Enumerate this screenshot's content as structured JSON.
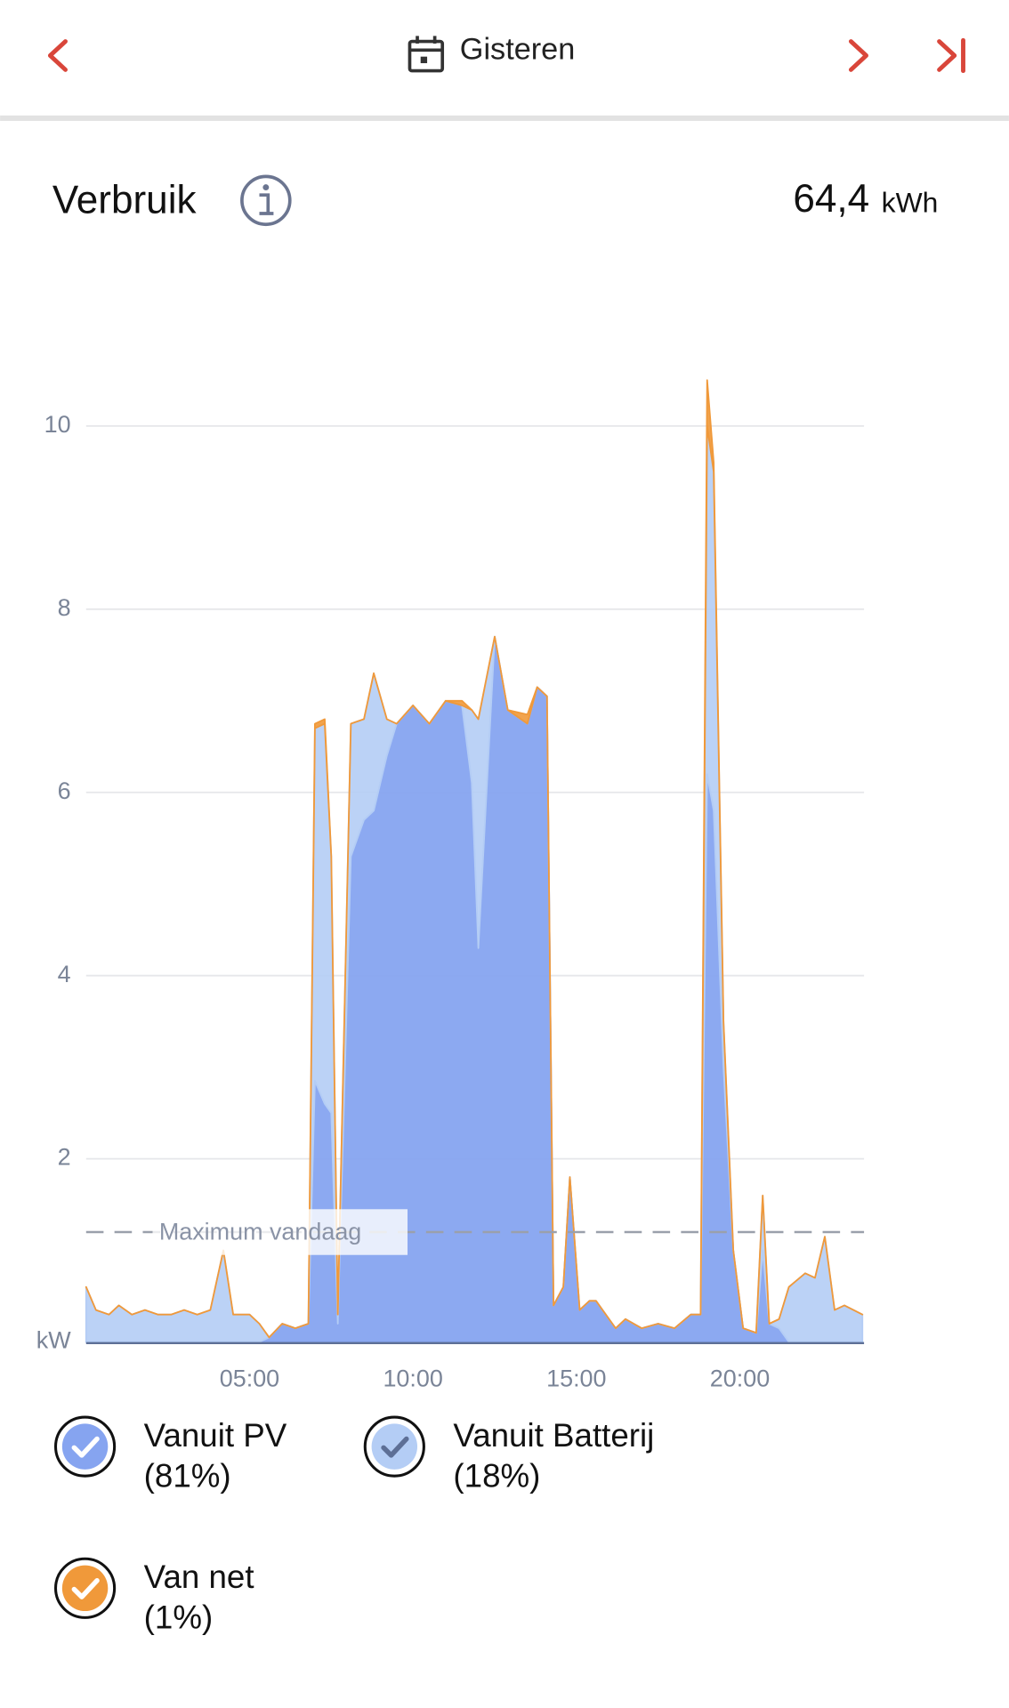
{
  "header": {
    "title": "Gisteren"
  },
  "summary": {
    "title": "Verbruik",
    "total": "64,4",
    "unit": "kWh"
  },
  "chart_data": {
    "type": "stacked-area",
    "y_label": "kW",
    "x": [
      0,
      0.3,
      0.7,
      1.0,
      1.4,
      1.8,
      2.2,
      2.6,
      3.0,
      3.4,
      3.8,
      4.2,
      4.5,
      5.0,
      5.3,
      5.6,
      6.0,
      6.4,
      6.8,
      7.0,
      7.3,
      7.5,
      7.7,
      8.1,
      8.5,
      8.8,
      9.2,
      9.5,
      10.0,
      10.5,
      11.0,
      11.5,
      11.8,
      12.0,
      12.5,
      12.9,
      13.5,
      13.8,
      14.1,
      14.3,
      14.6,
      14.8,
      15.1,
      15.4,
      15.6,
      16.2,
      16.5,
      17.0,
      17.5,
      18.0,
      18.5,
      18.8,
      19.0,
      19.2,
      19.5,
      19.8,
      20.1,
      20.5,
      20.7,
      20.9,
      21.2,
      21.5,
      22.0,
      22.3,
      22.6,
      22.9,
      23.2,
      23.75
    ],
    "series": [
      {
        "name": "Vanuit PV",
        "share_label": "(81%)",
        "color": "#86a4f0",
        "check_color": "#ffffff",
        "values": [
          0,
          0,
          0,
          0,
          0,
          0,
          0,
          0,
          0,
          0,
          0,
          0,
          0,
          0,
          0,
          0.05,
          0.2,
          0.15,
          0.2,
          2.85,
          2.6,
          2.5,
          0.2,
          5.3,
          5.7,
          5.8,
          6.4,
          6.75,
          6.95,
          6.75,
          7.0,
          6.95,
          6.1,
          4.3,
          7.7,
          6.9,
          6.75,
          7.15,
          7.05,
          0.4,
          0.6,
          1.8,
          0.35,
          0.45,
          0.45,
          0.15,
          0.25,
          0.15,
          0.2,
          0.15,
          0.3,
          0.3,
          6.2,
          5.8,
          3.0,
          1.0,
          0.15,
          0.1,
          1.0,
          0.2,
          0.15,
          0,
          0,
          0,
          0,
          0,
          0,
          0
        ]
      },
      {
        "name": "Vanuit Batterij",
        "share_label": "(18%)",
        "color": "#b4cdf5",
        "check_color": "#5d6f96",
        "values": [
          0.6,
          0.35,
          0.3,
          0.4,
          0.3,
          0.35,
          0.3,
          0.3,
          0.35,
          0.3,
          0.35,
          1.0,
          0.3,
          0.3,
          0.2,
          0,
          0,
          0,
          0,
          3.85,
          4.15,
          2.8,
          0.1,
          1.45,
          1.1,
          1.5,
          0.4,
          0,
          0,
          0,
          0,
          0,
          0.8,
          2.5,
          0,
          0,
          0,
          0,
          0,
          0,
          0,
          0,
          0,
          0,
          0,
          0,
          0,
          0,
          0,
          0,
          0,
          0,
          3.8,
          3.7,
          0.5,
          0,
          0,
          0,
          0.6,
          0,
          0.1,
          0.6,
          0.75,
          0.7,
          1.15,
          0.35,
          0.4,
          0.3
        ]
      },
      {
        "name": "Van net",
        "share_label": "(1%)",
        "color": "#f0993a",
        "check_color": "#ffffff",
        "values": [
          0,
          0,
          0,
          0,
          0,
          0,
          0,
          0,
          0,
          0,
          0,
          0,
          0,
          0,
          0,
          0,
          0,
          0,
          0,
          0.05,
          0.05,
          0,
          0,
          0,
          0,
          0,
          0,
          0,
          0,
          0,
          0,
          0.05,
          0,
          0,
          0,
          0,
          0.1,
          0,
          0,
          0,
          0,
          0,
          0,
          0,
          0,
          0,
          0,
          0,
          0,
          0,
          0,
          0,
          0.5,
          0.1,
          0,
          0,
          0,
          0,
          0,
          0,
          0,
          0,
          0,
          0,
          0,
          0,
          0,
          0
        ]
      }
    ],
    "xlim": [
      0,
      23.8
    ],
    "xticks": [
      {
        "value": 5,
        "label": "05:00"
      },
      {
        "value": 10,
        "label": "10:00"
      },
      {
        "value": 15,
        "label": "15:00"
      },
      {
        "value": 20,
        "label": "20:00"
      }
    ],
    "ylim": [
      0,
      11
    ],
    "yticks": [
      2,
      4,
      6,
      8,
      10
    ],
    "grid": true,
    "annotations": [
      {
        "text": "Maximum vandaag",
        "y": 1.2
      }
    ]
  }
}
